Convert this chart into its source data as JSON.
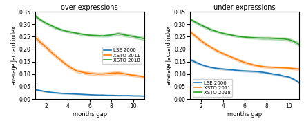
{
  "over": {
    "title": "over expressions",
    "lse2006_mean": [
      0.038,
      0.034,
      0.03,
      0.027,
      0.025,
      0.023,
      0.022,
      0.021,
      0.02,
      0.019,
      0.018,
      0.017,
      0.016,
      0.016,
      0.015,
      0.015,
      0.014,
      0.014,
      0.014,
      0.013,
      0.013,
      0.012
    ],
    "lse2006_std": [
      0.002,
      0.002,
      0.002,
      0.002,
      0.002,
      0.002,
      0.002,
      0.001,
      0.001,
      0.001,
      0.001,
      0.001,
      0.001,
      0.001,
      0.001,
      0.001,
      0.001,
      0.001,
      0.001,
      0.001,
      0.001,
      0.001
    ],
    "xsto2011_mean": [
      0.248,
      0.228,
      0.21,
      0.19,
      0.172,
      0.155,
      0.138,
      0.124,
      0.113,
      0.108,
      0.104,
      0.102,
      0.1,
      0.1,
      0.102,
      0.104,
      0.105,
      0.102,
      0.098,
      0.095,
      0.092,
      0.088
    ],
    "xsto2011_std": [
      0.008,
      0.008,
      0.007,
      0.007,
      0.007,
      0.006,
      0.006,
      0.006,
      0.006,
      0.006,
      0.006,
      0.006,
      0.006,
      0.006,
      0.006,
      0.006,
      0.006,
      0.005,
      0.005,
      0.005,
      0.005,
      0.005
    ],
    "xsto2018_mean": [
      0.333,
      0.318,
      0.305,
      0.295,
      0.285,
      0.278,
      0.272,
      0.268,
      0.264,
      0.26,
      0.257,
      0.255,
      0.254,
      0.253,
      0.255,
      0.258,
      0.262,
      0.258,
      0.254,
      0.25,
      0.246,
      0.242
    ],
    "xsto2018_std": [
      0.006,
      0.005,
      0.005,
      0.005,
      0.005,
      0.004,
      0.004,
      0.004,
      0.004,
      0.004,
      0.004,
      0.004,
      0.004,
      0.004,
      0.005,
      0.005,
      0.006,
      0.006,
      0.006,
      0.006,
      0.006,
      0.006
    ]
  },
  "under": {
    "title": "under expressions",
    "lse2006_mean": [
      0.158,
      0.148,
      0.139,
      0.132,
      0.127,
      0.123,
      0.121,
      0.119,
      0.117,
      0.115,
      0.113,
      0.112,
      0.111,
      0.11,
      0.107,
      0.104,
      0.1,
      0.097,
      0.092,
      0.088,
      0.078,
      0.065
    ],
    "lse2006_std": [
      0.004,
      0.004,
      0.003,
      0.003,
      0.003,
      0.003,
      0.003,
      0.003,
      0.003,
      0.003,
      0.003,
      0.003,
      0.003,
      0.003,
      0.003,
      0.003,
      0.003,
      0.003,
      0.003,
      0.003,
      0.003,
      0.003
    ],
    "xsto2011_mean": [
      0.27,
      0.252,
      0.235,
      0.22,
      0.207,
      0.195,
      0.185,
      0.176,
      0.167,
      0.158,
      0.15,
      0.143,
      0.138,
      0.133,
      0.13,
      0.128,
      0.127,
      0.126,
      0.125,
      0.124,
      0.122,
      0.12
    ],
    "xsto2011_std": [
      0.006,
      0.006,
      0.006,
      0.006,
      0.005,
      0.005,
      0.005,
      0.005,
      0.005,
      0.005,
      0.005,
      0.005,
      0.004,
      0.004,
      0.004,
      0.004,
      0.004,
      0.004,
      0.004,
      0.004,
      0.004,
      0.004
    ],
    "xsto2018_mean": [
      0.32,
      0.308,
      0.297,
      0.287,
      0.278,
      0.271,
      0.265,
      0.26,
      0.256,
      0.252,
      0.249,
      0.247,
      0.246,
      0.245,
      0.244,
      0.244,
      0.243,
      0.242,
      0.241,
      0.238,
      0.23,
      0.218
    ],
    "xsto2018_std": [
      0.005,
      0.005,
      0.005,
      0.005,
      0.005,
      0.004,
      0.004,
      0.004,
      0.004,
      0.004,
      0.004,
      0.004,
      0.004,
      0.004,
      0.005,
      0.005,
      0.005,
      0.005,
      0.006,
      0.006,
      0.006,
      0.007
    ]
  },
  "colors": {
    "lse2006": "#1f77b4",
    "xsto2011": "#ff7f0e",
    "xsto2018": "#2ca02c"
  },
  "ylabel": "average Jaccard index",
  "xlabel": "months gap",
  "ylim": [
    0.0,
    0.35
  ],
  "yticks": [
    0.0,
    0.05,
    0.1,
    0.15,
    0.2,
    0.25,
    0.3,
    0.35
  ],
  "xticks": [
    2,
    4,
    6,
    8,
    10
  ],
  "legend_labels": [
    "LSE 2006",
    "XSTO 2011",
    "XSTO 2018"
  ],
  "alpha_fill": 0.25,
  "linewidth": 1.2,
  "over_legend_loc": "center right",
  "under_legend_loc": "lower left"
}
